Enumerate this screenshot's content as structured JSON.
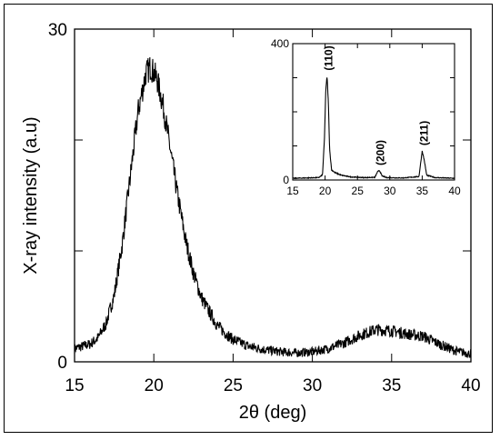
{
  "chart_data": [
    {
      "type": "line",
      "title": "",
      "xlabel": "2θ (deg)",
      "ylabel": "X-ray intensity (a.u)",
      "xlim": [
        15,
        40
      ],
      "ylim": [
        0,
        30
      ],
      "x_ticks": [
        15,
        20,
        25,
        30,
        35,
        40
      ],
      "y_tick_labels": [
        "0",
        "30"
      ],
      "grid": false,
      "series": [
        {
          "points": [
            [
              15,
              1.2
            ],
            [
              16,
              1.6
            ],
            [
              16.5,
              2.2
            ],
            [
              17,
              3.5
            ],
            [
              17.5,
              6.0
            ],
            [
              18,
              10.5
            ],
            [
              18.5,
              16.5
            ],
            [
              19,
              22.5
            ],
            [
              19.5,
              26.0
            ],
            [
              19.8,
              26.6
            ],
            [
              20.2,
              25.5
            ],
            [
              20.6,
              23.0
            ],
            [
              21,
              19.5
            ],
            [
              21.5,
              15.0
            ],
            [
              22,
              11.0
            ],
            [
              22.5,
              8.0
            ],
            [
              23,
              5.8
            ],
            [
              23.5,
              4.5
            ],
            [
              24,
              3.3
            ],
            [
              24.5,
              2.6
            ],
            [
              25,
              2.0
            ],
            [
              26,
              1.4
            ],
            [
              27,
              1.1
            ],
            [
              28,
              0.9
            ],
            [
              29,
              0.8
            ],
            [
              30,
              0.9
            ],
            [
              31,
              1.2
            ],
            [
              32,
              1.7
            ],
            [
              33,
              2.4
            ],
            [
              34,
              2.9
            ],
            [
              35,
              2.8
            ],
            [
              36,
              2.5
            ],
            [
              37,
              2.3
            ],
            [
              38,
              1.6
            ],
            [
              39,
              1.0
            ],
            [
              40,
              0.7
            ]
          ]
        }
      ]
    },
    {
      "type": "line",
      "title": "",
      "xlim": [
        15,
        40
      ],
      "ylim": [
        0,
        400
      ],
      "x_ticks": [
        15,
        20,
        25,
        30,
        35,
        40
      ],
      "y_tick_labels": [
        "0",
        "400"
      ],
      "annotations": [
        {
          "text": "(110)",
          "x": 20.3
        },
        {
          "text": "(200)",
          "x": 28.3
        },
        {
          "text": "(211)",
          "x": 35.0
        }
      ],
      "series": [
        {
          "points": [
            [
              15,
              5
            ],
            [
              17,
              6
            ],
            [
              19,
              7
            ],
            [
              19.6,
              15
            ],
            [
              19.9,
              120
            ],
            [
              20.1,
              260
            ],
            [
              20.3,
              305
            ],
            [
              20.5,
              230
            ],
            [
              20.7,
              90
            ],
            [
              21,
              30
            ],
            [
              21.5,
              22
            ],
            [
              22.5,
              14
            ],
            [
              24,
              9
            ],
            [
              26,
              7
            ],
            [
              27.7,
              8
            ],
            [
              28.1,
              24
            ],
            [
              28.4,
              28
            ],
            [
              28.8,
              12
            ],
            [
              29.5,
              7
            ],
            [
              32,
              6
            ],
            [
              34.5,
              10
            ],
            [
              34.8,
              55
            ],
            [
              35.0,
              85
            ],
            [
              35.3,
              60
            ],
            [
              35.7,
              14
            ],
            [
              37,
              7
            ],
            [
              40,
              5
            ]
          ]
        }
      ]
    }
  ]
}
